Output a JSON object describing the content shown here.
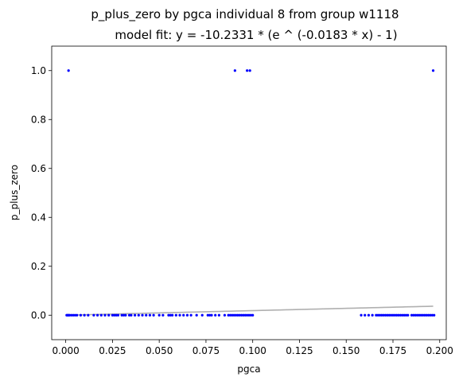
{
  "chart_data": {
    "type": "scatter",
    "title": "p_plus_zero by pgca individual 8 from group w1118",
    "subtitle": "model fit: y = -10.2331 * (e ^ (-0.0183 * x) - 1)",
    "xlabel": "pgca",
    "ylabel": "p_plus_zero",
    "xlim": [
      -0.0075,
      0.2035
    ],
    "ylim": [
      -0.1,
      1.1
    ],
    "xticks": [
      0.0,
      0.025,
      0.05,
      0.075,
      0.1,
      0.125,
      0.15,
      0.175,
      0.2
    ],
    "xtick_labels": [
      "0.000",
      "0.025",
      "0.050",
      "0.075",
      "0.100",
      "0.125",
      "0.150",
      "0.175",
      "0.200"
    ],
    "yticks": [
      0.0,
      0.2,
      0.4,
      0.6,
      0.8,
      1.0
    ],
    "ytick_labels": [
      "0.0",
      "0.2",
      "0.4",
      "0.6",
      "0.8",
      "1.0"
    ],
    "grid": false,
    "colors": {
      "points": "#0000ff",
      "fit_line": "#b0b0b0"
    },
    "series": [
      {
        "kind": "points",
        "x": [
          0.0005,
          0.001,
          0.0015,
          0.002,
          0.003,
          0.004,
          0.005,
          0.006,
          0.008,
          0.01,
          0.012,
          0.015,
          0.017,
          0.019,
          0.021,
          0.023,
          0.025,
          0.026,
          0.027,
          0.028,
          0.03,
          0.031,
          0.032,
          0.034,
          0.035,
          0.037,
          0.039,
          0.041,
          0.043,
          0.045,
          0.047,
          0.05,
          0.052,
          0.055,
          0.056,
          0.057,
          0.059,
          0.061,
          0.063,
          0.065,
          0.067,
          0.07,
          0.073,
          0.076,
          0.077,
          0.078,
          0.08,
          0.082,
          0.085,
          0.087,
          0.088,
          0.089,
          0.09,
          0.091,
          0.092,
          0.093,
          0.094,
          0.095,
          0.096,
          0.097,
          0.098,
          0.099,
          0.1,
          0.158,
          0.16,
          0.162,
          0.164,
          0.166,
          0.167,
          0.168,
          0.169,
          0.17,
          0.171,
          0.172,
          0.173,
          0.174,
          0.175,
          0.176,
          0.177,
          0.178,
          0.179,
          0.18,
          0.181,
          0.182,
          0.183,
          0.185,
          0.186,
          0.187,
          0.188,
          0.189,
          0.19,
          0.191,
          0.192,
          0.193,
          0.194,
          0.195,
          0.196,
          0.197,
          0.0015,
          0.0905,
          0.097,
          0.0985,
          0.1965
        ],
        "y": [
          0,
          0,
          0,
          0,
          0,
          0,
          0,
          0,
          0,
          0,
          0,
          0,
          0,
          0,
          0,
          0,
          0,
          0,
          0,
          0,
          0,
          0,
          0,
          0,
          0,
          0,
          0,
          0,
          0,
          0,
          0,
          0,
          0,
          0,
          0,
          0,
          0,
          0,
          0,
          0,
          0,
          0,
          0,
          0,
          0,
          0,
          0,
          0,
          0,
          0,
          0,
          0,
          0,
          0,
          0,
          0,
          0,
          0,
          0,
          0,
          0,
          0,
          0,
          0,
          0,
          0,
          0,
          0,
          0,
          0,
          0,
          0,
          0,
          0,
          0,
          0,
          0,
          0,
          0,
          0,
          0,
          0,
          0,
          0,
          0,
          0,
          0,
          0,
          0,
          0,
          0,
          0,
          0,
          0,
          0,
          0,
          0,
          0,
          1,
          1,
          1,
          1,
          1
        ]
      },
      {
        "kind": "fit_line",
        "a": -10.2331,
        "b": -0.0183,
        "x_range": [
          0.0,
          0.1965
        ]
      }
    ]
  }
}
